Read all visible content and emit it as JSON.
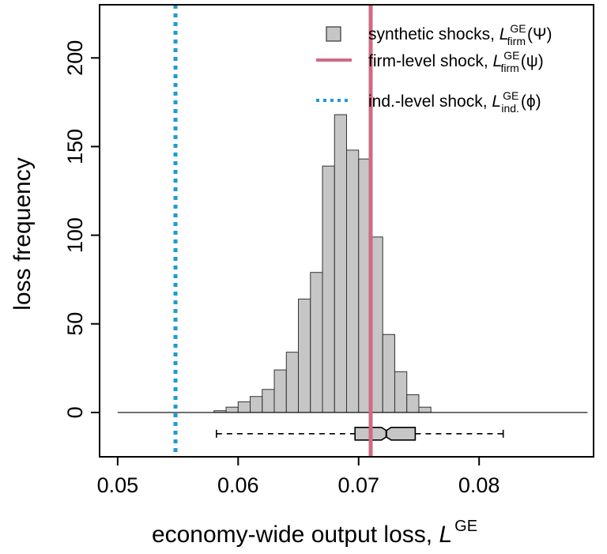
{
  "chart_data": {
    "type": "bar",
    "xlabel": "economy-wide output loss, ",
    "xlabel_symbol": "L",
    "xlabel_sup": "GE",
    "ylabel": "loss frequency",
    "xlim": [
      0.0485,
      0.0895
    ],
    "ylim": [
      -25,
      230
    ],
    "x_ticks": [
      0.05,
      0.06,
      0.07,
      0.08
    ],
    "x_tick_labels": [
      "0.05",
      "0.06",
      "0.07",
      "0.08"
    ],
    "y_ticks": [
      0,
      50,
      100,
      150,
      200
    ],
    "y_tick_labels": [
      "0",
      "50",
      "100",
      "150",
      "200"
    ],
    "bin_width": 0.001,
    "bins_start": [
      0.057,
      0.058,
      0.059,
      0.06,
      0.061,
      0.062,
      0.063,
      0.064,
      0.065,
      0.066,
      0.067,
      0.068,
      0.069,
      0.07,
      0.071,
      0.072,
      0.073,
      0.074,
      0.075,
      0.076,
      0.077,
      0.078,
      0.079,
      0.08,
      0.081,
      0.082
    ],
    "values": [
      0,
      1,
      3,
      6,
      9,
      13,
      24,
      34,
      64,
      79,
      139,
      168,
      148,
      143,
      99,
      44,
      23,
      10,
      3
    ],
    "values_offset_bins": 7,
    "baseline_range": [
      0.05,
      0.089
    ],
    "boxplot": {
      "whisker_low": 0.0582,
      "q1": 0.0697,
      "median": 0.0723,
      "q3": 0.0747,
      "whisker_high": 0.082,
      "y_level": -12
    },
    "vlines": [
      {
        "name": "firm-level shock",
        "x": 0.071,
        "style": "solid",
        "color": "#d06a85"
      },
      {
        "name": "ind.-level shock",
        "x": 0.0548,
        "style": "dotted",
        "color": "#1e9bd0"
      }
    ],
    "colors": {
      "bar_fill": "#c6c6c6",
      "bar_stroke": "#333333",
      "frame": "#000000"
    },
    "legend": {
      "position": "top-right",
      "items": [
        {
          "marker": "box",
          "text": "synthetic shocks, ",
          "sym": "L",
          "sup": "GE",
          "sub": "firm",
          "arg": "(Ψ)"
        },
        {
          "marker": "solid-line",
          "text": "firm-level shock, ",
          "sym": "L",
          "sup": "GE",
          "sub": "firm",
          "arg": "(ψ)"
        },
        {
          "marker": "dotted-line",
          "text": "ind.-level shock, ",
          "sym": "L",
          "sup": "GE",
          "sub": "ind.",
          "arg": "(ϕ)"
        }
      ]
    }
  }
}
